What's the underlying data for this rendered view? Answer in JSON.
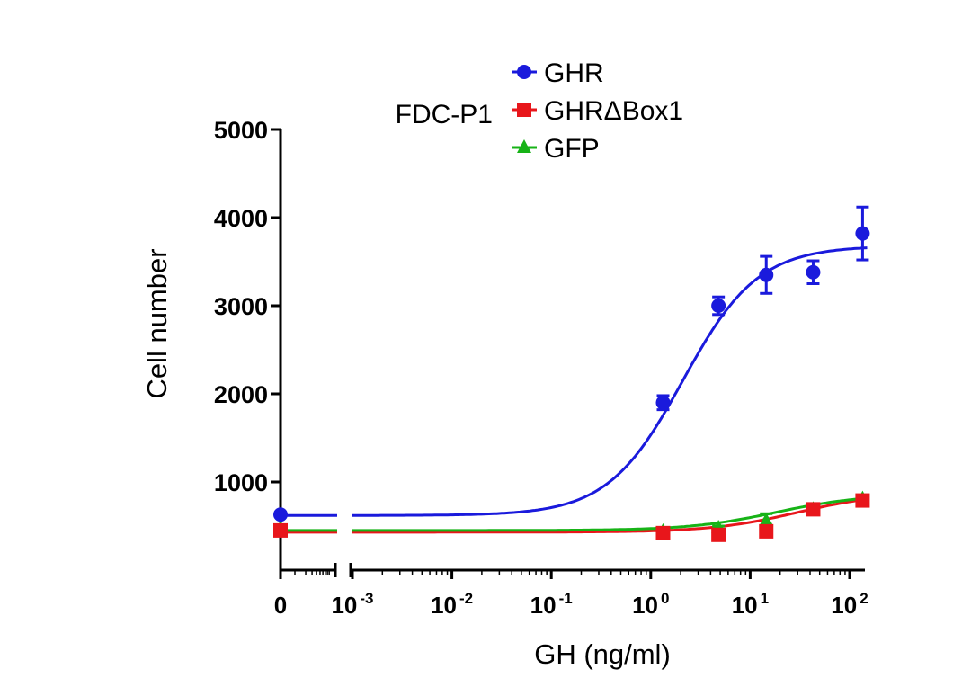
{
  "chart_data": {
    "type": "scatter",
    "title": "",
    "subtitle": "FDC-P1",
    "xlabel": "GH (ng/ml)",
    "ylabel": "Cell number",
    "x_scale": "log",
    "x_axis_break": true,
    "xlim": [
      0.001,
      150
    ],
    "ylim": [
      0,
      5000
    ],
    "yticks": [
      1000,
      2000,
      3000,
      4000,
      5000
    ],
    "ytick_labels": [
      "1000",
      "2000",
      "3000",
      "4000",
      "5000"
    ],
    "xticks": [
      0,
      0.001,
      0.01,
      0.1,
      1,
      10,
      100
    ],
    "xtick_labels": [
      {
        "base": "0",
        "exp": ""
      },
      {
        "base": "10",
        "exp": "-3"
      },
      {
        "base": "10",
        "exp": "-2"
      },
      {
        "base": "10",
        "exp": "-1"
      },
      {
        "base": "10",
        "exp": "0"
      },
      {
        "base": "10",
        "exp": "1"
      },
      {
        "base": "10",
        "exp": "2"
      }
    ],
    "legend_position": "top",
    "grid": false,
    "series": [
      {
        "name": "GHR",
        "color": "#1a1adc",
        "marker": "circle",
        "points": [
          {
            "x": 0,
            "y": 630,
            "err": 0
          },
          {
            "x": 1.33,
            "y": 1900,
            "err": 80
          },
          {
            "x": 4.8,
            "y": 3000,
            "err": 100
          },
          {
            "x": 14.5,
            "y": 3350,
            "err": 210
          },
          {
            "x": 43,
            "y": 3380,
            "err": 130
          },
          {
            "x": 135,
            "y": 3820,
            "err": 300
          }
        ],
        "fit": {
          "bottom": 620,
          "top": 3680,
          "ec50": 2.1,
          "hill": 1.15
        }
      },
      {
        "name": "GHRΔBox1",
        "color": "#e8161b",
        "marker": "square",
        "points": [
          {
            "x": 0,
            "y": 450,
            "err": 0
          },
          {
            "x": 1.33,
            "y": 420,
            "err": 20
          },
          {
            "x": 4.8,
            "y": 400,
            "err": 20
          },
          {
            "x": 14.5,
            "y": 440,
            "err": 30
          },
          {
            "x": 43,
            "y": 690,
            "err": 30
          },
          {
            "x": 135,
            "y": 790,
            "err": 30
          }
        ],
        "fit": {
          "bottom": 430,
          "top": 880,
          "ec50": 30,
          "hill": 1.0
        }
      },
      {
        "name": "GFP",
        "color": "#17b317",
        "marker": "triangle",
        "points": [
          {
            "x": 0,
            "y": 470,
            "err": 0
          },
          {
            "x": 1.33,
            "y": 440,
            "err": 20
          },
          {
            "x": 4.8,
            "y": 480,
            "err": 20
          },
          {
            "x": 14.5,
            "y": 560,
            "err": 80
          },
          {
            "x": 43,
            "y": 690,
            "err": 30
          },
          {
            "x": 135,
            "y": 810,
            "err": 30
          }
        ],
        "fit": {
          "bottom": 450,
          "top": 860,
          "ec50": 18,
          "hill": 1.0
        }
      }
    ]
  }
}
